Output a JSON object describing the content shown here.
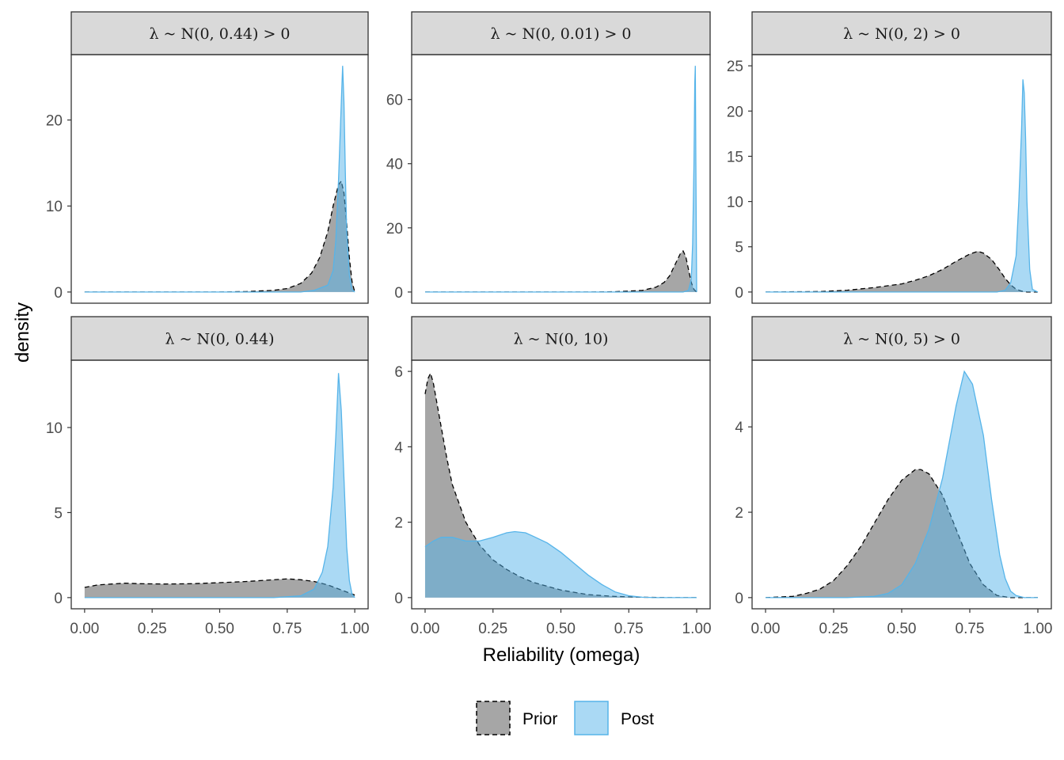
{
  "chart_data": {
    "type": "area",
    "subtype": "faceted density",
    "xlabel": "Reliability (omega)",
    "ylabel": "density",
    "legend": {
      "position": "bottom",
      "entries": [
        {
          "name": "Prior",
          "fill": "#4d4d4d",
          "stroke": "#000000",
          "dashed": true
        },
        {
          "name": "Post",
          "fill": "#56b4e9",
          "stroke": "#56b4e9",
          "dashed": false
        }
      ]
    },
    "x_ticks": [
      0.0,
      0.25,
      0.5,
      0.75,
      1.0
    ],
    "x_tick_labels": [
      "0.00",
      "0.25",
      "0.50",
      "0.75",
      "1.00"
    ],
    "xlim": [
      0,
      1
    ],
    "panels": [
      {
        "title": "λ ~ N(0, 0.44) > 0",
        "ylim": [
          0,
          26.3
        ],
        "y_ticks": [
          0,
          10,
          20
        ],
        "series": [
          {
            "name": "Prior",
            "x": [
              0,
              0.5,
              0.6,
              0.7,
              0.75,
              0.8,
              0.84,
              0.87,
              0.9,
              0.92,
              0.94,
              0.95,
              0.96,
              0.97,
              0.98,
              0.99,
              1.0
            ],
            "y": [
              0,
              0,
              0.05,
              0.2,
              0.4,
              1.0,
              2.2,
              4.0,
              7.0,
              10.0,
              12.5,
              12.9,
              11.5,
              8.0,
              4.0,
              1.2,
              0
            ]
          },
          {
            "name": "Post",
            "x": [
              0,
              0.8,
              0.85,
              0.9,
              0.92,
              0.93,
              0.94,
              0.95,
              0.955,
              0.96,
              0.965,
              0.97,
              0.98,
              0.99,
              1.0
            ],
            "y": [
              0,
              0,
              0.2,
              0.8,
              2.5,
              6.0,
              13.0,
              22.0,
              26.3,
              22.0,
              14.0,
              7.0,
              2.0,
              0.3,
              0
            ]
          }
        ]
      },
      {
        "title": "λ ~ N(0, 0.01) > 0",
        "ylim": [
          0,
          70.5
        ],
        "y_ticks": [
          0,
          20,
          40,
          60
        ],
        "series": [
          {
            "name": "Prior",
            "x": [
              0,
              0.6,
              0.7,
              0.8,
              0.85,
              0.88,
              0.9,
              0.92,
              0.94,
              0.95,
              0.96,
              0.97,
              0.98,
              0.99,
              1.0
            ],
            "y": [
              0,
              0,
              0.1,
              0.5,
              1.5,
              3.0,
              5.0,
              8.5,
              12.0,
              12.8,
              11.0,
              7.0,
              3.0,
              0.8,
              0
            ]
          },
          {
            "name": "Post",
            "x": [
              0,
              0.95,
              0.97,
              0.98,
              0.985,
              0.99,
              0.993,
              0.995,
              0.997,
              1.0
            ],
            "y": [
              0,
              0,
              0.5,
              4.0,
              15.0,
              40.0,
              65.0,
              70.5,
              40.0,
              0
            ]
          }
        ]
      },
      {
        "title": "λ ~ N(0, 2) > 0",
        "ylim": [
          0,
          25.0
        ],
        "y_ticks": [
          0,
          5,
          10,
          15,
          20,
          25
        ],
        "series": [
          {
            "name": "Prior",
            "x": [
              0,
              0.2,
              0.3,
              0.4,
              0.5,
              0.55,
              0.6,
              0.65,
              0.7,
              0.75,
              0.78,
              0.8,
              0.83,
              0.86,
              0.88,
              0.9,
              0.92,
              0.94,
              0.96,
              1.0
            ],
            "y": [
              0,
              0.05,
              0.2,
              0.5,
              0.9,
              1.3,
              1.8,
              2.5,
              3.4,
              4.2,
              4.5,
              4.3,
              3.6,
              2.4,
              1.5,
              0.8,
              0.3,
              0.1,
              0,
              0
            ]
          },
          {
            "name": "Post",
            "x": [
              0,
              0.85,
              0.88,
              0.9,
              0.92,
              0.93,
              0.94,
              0.945,
              0.95,
              0.955,
              0.96,
              0.97,
              0.98,
              1.0
            ],
            "y": [
              0,
              0,
              0.2,
              1.0,
              4.0,
              10.0,
              18.0,
              23.5,
              22.0,
              17.0,
              10.0,
              2.5,
              0.3,
              0
            ]
          }
        ]
      },
      {
        "title": "λ ~ N(0, 0.44)",
        "ylim": [
          0,
          13.3
        ],
        "y_ticks": [
          0,
          5,
          10
        ],
        "series": [
          {
            "name": "Prior",
            "x": [
              0,
              0.05,
              0.1,
              0.15,
              0.2,
              0.3,
              0.4,
              0.5,
              0.6,
              0.7,
              0.75,
              0.8,
              0.85,
              0.9,
              0.95,
              1.0
            ],
            "y": [
              0.6,
              0.75,
              0.8,
              0.85,
              0.82,
              0.8,
              0.82,
              0.88,
              0.95,
              1.05,
              1.1,
              1.05,
              0.95,
              0.75,
              0.45,
              0.15
            ]
          },
          {
            "name": "Post",
            "x": [
              0,
              0.7,
              0.8,
              0.85,
              0.88,
              0.9,
              0.92,
              0.93,
              0.94,
              0.95,
              0.96,
              0.97,
              0.98,
              0.99,
              1.0
            ],
            "y": [
              0,
              0,
              0.1,
              0.5,
              1.5,
              3.0,
              6.5,
              9.5,
              13.2,
              11.0,
              7.0,
              3.0,
              1.0,
              0.2,
              0
            ]
          }
        ]
      },
      {
        "title": "λ ~ N(0, 10)",
        "ylim": [
          0,
          6.0
        ],
        "y_ticks": [
          0,
          2,
          4,
          6
        ],
        "series": [
          {
            "name": "Prior",
            "x": [
              0,
              0.01,
              0.02,
              0.03,
              0.05,
              0.08,
              0.1,
              0.15,
              0.2,
              0.25,
              0.3,
              0.35,
              0.4,
              0.5,
              0.6,
              0.7,
              0.8,
              0.9,
              1.0
            ],
            "y": [
              5.4,
              5.8,
              5.95,
              5.7,
              4.9,
              3.7,
              3.0,
              2.0,
              1.4,
              1.0,
              0.75,
              0.55,
              0.4,
              0.2,
              0.08,
              0.03,
              0.01,
              0,
              0
            ]
          },
          {
            "name": "Post",
            "x": [
              0,
              0.03,
              0.06,
              0.1,
              0.15,
              0.2,
              0.25,
              0.3,
              0.33,
              0.37,
              0.4,
              0.45,
              0.5,
              0.55,
              0.6,
              0.65,
              0.7,
              0.75,
              0.8,
              0.85,
              0.9,
              1.0
            ],
            "y": [
              1.35,
              1.5,
              1.6,
              1.6,
              1.5,
              1.5,
              1.6,
              1.72,
              1.75,
              1.72,
              1.62,
              1.45,
              1.2,
              0.9,
              0.6,
              0.35,
              0.15,
              0.05,
              0.01,
              0,
              0,
              0
            ]
          }
        ]
      },
      {
        "title": "λ ~ N(0, 5) > 0",
        "ylim": [
          0,
          5.3
        ],
        "y_ticks": [
          0,
          2,
          4
        ],
        "series": [
          {
            "name": "Prior",
            "x": [
              0,
              0.1,
              0.15,
              0.2,
              0.25,
              0.3,
              0.35,
              0.4,
              0.45,
              0.5,
              0.55,
              0.57,
              0.6,
              0.65,
              0.7,
              0.75,
              0.8,
              0.85,
              0.9,
              1.0
            ],
            "y": [
              0,
              0.03,
              0.1,
              0.2,
              0.4,
              0.75,
              1.2,
              1.75,
              2.3,
              2.75,
              3.0,
              3.0,
              2.9,
              2.4,
              1.6,
              0.8,
              0.3,
              0.05,
              0,
              0
            ]
          },
          {
            "name": "Post",
            "x": [
              0,
              0.3,
              0.4,
              0.45,
              0.5,
              0.55,
              0.6,
              0.65,
              0.7,
              0.73,
              0.76,
              0.8,
              0.83,
              0.86,
              0.88,
              0.9,
              0.92,
              0.95,
              1.0
            ],
            "y": [
              0,
              0,
              0.03,
              0.1,
              0.3,
              0.8,
              1.6,
              2.8,
              4.5,
              5.3,
              5.0,
              3.8,
              2.3,
              1.0,
              0.45,
              0.15,
              0.05,
              0,
              0
            ]
          }
        ]
      }
    ]
  }
}
